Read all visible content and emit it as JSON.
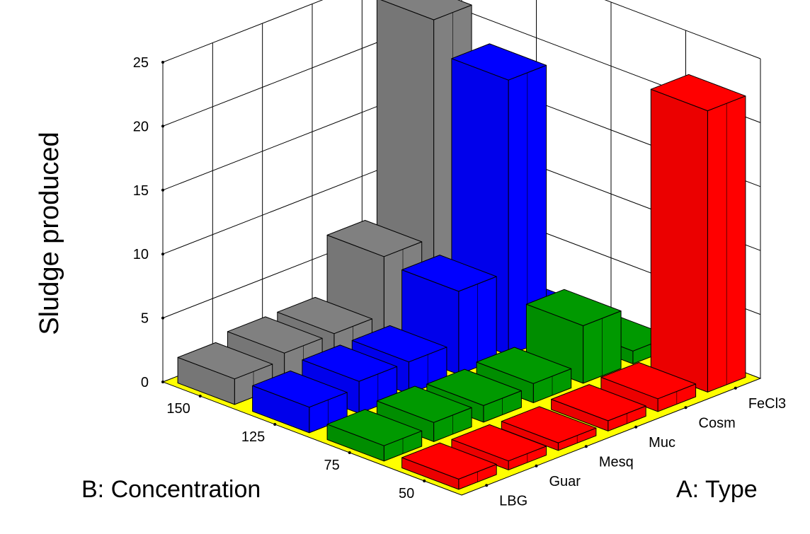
{
  "chart_data": {
    "type": "bar3d",
    "zlabel": "Sludge produced",
    "xlabel": "A: Type",
    "ylabel": "B: Concentration",
    "zlim": [
      0,
      25
    ],
    "z_ticks": [
      0,
      5,
      10,
      15,
      20,
      25
    ],
    "categories_A": [
      "LBG",
      "Guar",
      "Mesq",
      "Muc",
      "Cosm",
      "FeCl3"
    ],
    "categories_B": [
      "50",
      "75",
      "125",
      "150"
    ],
    "series": [
      {
        "B": "50",
        "values": [
          0.8,
          0.7,
          0.6,
          0.8,
          1.0,
          22.0
        ]
      },
      {
        "B": "75",
        "values": [
          1.2,
          1.5,
          1.3,
          1.5,
          4.5,
          1.0
        ]
      },
      {
        "B": "125",
        "values": [
          2.0,
          2.5,
          2.5,
          6.5,
          21.5,
          1.0
        ]
      },
      {
        "B": "150",
        "values": [
          2.0,
          2.5,
          2.5,
          7.0,
          24.0,
          0.9
        ]
      }
    ],
    "colors_by_B": {
      "150": "#808080",
      "125": "#0000ff",
      "75": "#009900",
      "50": "#ff0000"
    },
    "floor_color": "#ffff00",
    "grid": true
  }
}
